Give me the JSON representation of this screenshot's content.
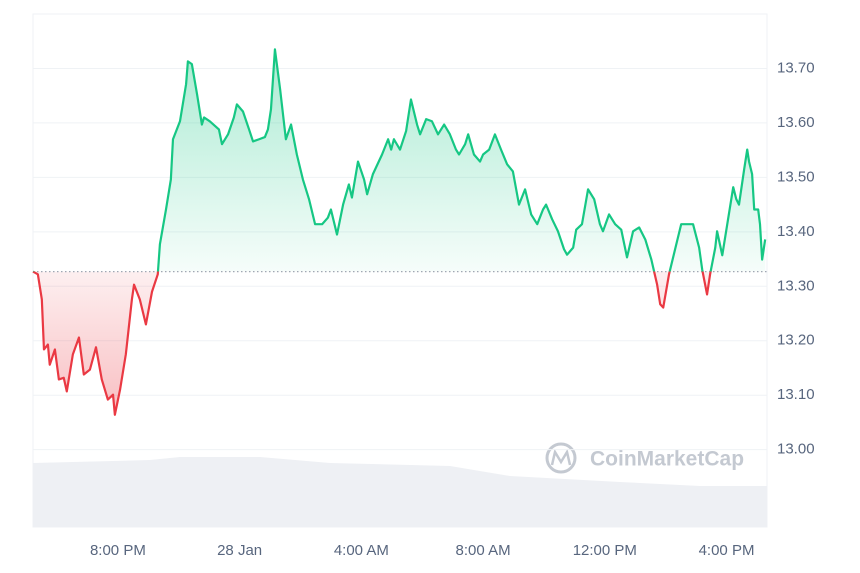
{
  "chart_data": {
    "type": "line",
    "x": [
      -2.79,
      -2.63,
      -2.5,
      -2.43,
      -2.3,
      -2.24,
      -2.07,
      -1.94,
      -1.78,
      -1.68,
      -1.48,
      -1.28,
      -1.12,
      -0.92,
      -0.72,
      -0.53,
      -0.33,
      -0.16,
      -0.1,
      0.07,
      0.26,
      0.46,
      0.53,
      0.72,
      0.92,
      1.12,
      1.31,
      1.38,
      1.58,
      1.74,
      1.81,
      2.04,
      2.24,
      2.3,
      2.43,
      2.6,
      2.76,
      2.83,
      3.02,
      3.32,
      3.42,
      3.62,
      3.81,
      3.91,
      4.11,
      4.31,
      4.44,
      4.64,
      4.83,
      4.93,
      5.03,
      5.16,
      5.33,
      5.52,
      5.69,
      5.88,
      6.08,
      6.28,
      6.48,
      6.71,
      6.9,
      7.0,
      7.2,
      7.4,
      7.59,
      7.69,
      7.89,
      8.09,
      8.19,
      8.38,
      8.68,
      8.88,
      8.98,
      9.07,
      9.27,
      9.47,
      9.63,
      9.83,
      9.93,
      10.13,
      10.32,
      10.52,
      10.72,
      10.91,
      11.11,
      11.21,
      11.41,
      11.51,
      11.7,
      11.9,
      12.0,
      12.2,
      12.39,
      12.59,
      12.79,
      12.98,
      13.18,
      13.38,
      13.58,
      13.78,
      13.97,
      14.07,
      14.27,
      14.46,
      14.66,
      14.76,
      14.96,
      15.06,
      15.25,
      15.45,
      15.65,
      15.84,
      15.94,
      16.14,
      16.34,
      16.54,
      16.73,
      16.93,
      17.13,
      17.33,
      17.53,
      17.72,
      17.82,
      17.92,
      18.11,
      18.31,
      18.51,
      18.71,
      18.9,
      19.1,
      19.2,
      19.36,
      19.46,
      19.63,
      19.69,
      19.86,
      20.05,
      20.22,
      20.32,
      20.41,
      20.58,
      20.68,
      20.74,
      20.84,
      20.91,
      21.04,
      21.1,
      21.17,
      21.27
    ],
    "values": [
      13.327,
      13.322,
      13.276,
      13.184,
      13.193,
      13.156,
      13.184,
      13.129,
      13.132,
      13.107,
      13.175,
      13.206,
      13.138,
      13.147,
      13.188,
      13.129,
      13.092,
      13.101,
      13.064,
      13.11,
      13.175,
      13.276,
      13.303,
      13.276,
      13.23,
      13.29,
      13.322,
      13.377,
      13.441,
      13.496,
      13.57,
      13.603,
      13.671,
      13.713,
      13.708,
      13.653,
      13.597,
      13.61,
      13.603,
      13.588,
      13.561,
      13.579,
      13.61,
      13.634,
      13.621,
      13.588,
      13.566,
      13.57,
      13.574,
      13.588,
      13.625,
      13.735,
      13.662,
      13.57,
      13.597,
      13.542,
      13.496,
      13.46,
      13.414,
      13.414,
      13.426,
      13.441,
      13.395,
      13.45,
      13.487,
      13.463,
      13.529,
      13.496,
      13.469,
      13.506,
      13.542,
      13.57,
      13.551,
      13.57,
      13.551,
      13.585,
      13.643,
      13.597,
      13.579,
      13.607,
      13.603,
      13.579,
      13.597,
      13.579,
      13.551,
      13.542,
      13.561,
      13.579,
      13.542,
      13.529,
      13.542,
      13.551,
      13.579,
      13.551,
      13.524,
      13.511,
      13.45,
      13.478,
      13.432,
      13.414,
      13.441,
      13.45,
      13.423,
      13.401,
      13.368,
      13.358,
      13.371,
      13.404,
      13.414,
      13.478,
      13.46,
      13.414,
      13.401,
      13.432,
      13.414,
      13.404,
      13.353,
      13.401,
      13.408,
      13.386,
      13.349,
      13.303,
      13.267,
      13.261,
      13.322,
      13.368,
      13.414,
      13.414,
      13.414,
      13.371,
      13.331,
      13.285,
      13.322,
      13.371,
      13.401,
      13.357,
      13.423,
      13.482,
      13.46,
      13.45,
      13.515,
      13.551,
      13.529,
      13.506,
      13.441,
      13.441,
      13.414,
      13.349,
      13.386
    ],
    "baseline": 13.327,
    "up_color": "#16c784",
    "down_color": "#ea3943",
    "xlim": [
      -2.79,
      21.33
    ],
    "xticks": [
      {
        "value": 0,
        "label": "8:00 PM"
      },
      {
        "value": 4,
        "label": "28 Jan"
      },
      {
        "value": 8,
        "label": "4:00 AM"
      },
      {
        "value": 12,
        "label": "8:00 AM"
      },
      {
        "value": 16,
        "label": "12:00 PM"
      },
      {
        "value": 20,
        "label": "4:00 PM"
      }
    ],
    "ylim": [
      12.858,
      13.8
    ],
    "yticks": [
      {
        "value": 13.0,
        "label": "13.00"
      },
      {
        "value": 13.1,
        "label": "13.10"
      },
      {
        "value": 13.2,
        "label": "13.20"
      },
      {
        "value": 13.3,
        "label": "13.30"
      },
      {
        "value": 13.4,
        "label": "13.40"
      },
      {
        "value": 13.5,
        "label": "13.50"
      },
      {
        "value": 13.6,
        "label": "13.60"
      },
      {
        "value": 13.7,
        "label": "13.70"
      }
    ],
    "grid": true,
    "watermark": "CoinMarketCap"
  }
}
